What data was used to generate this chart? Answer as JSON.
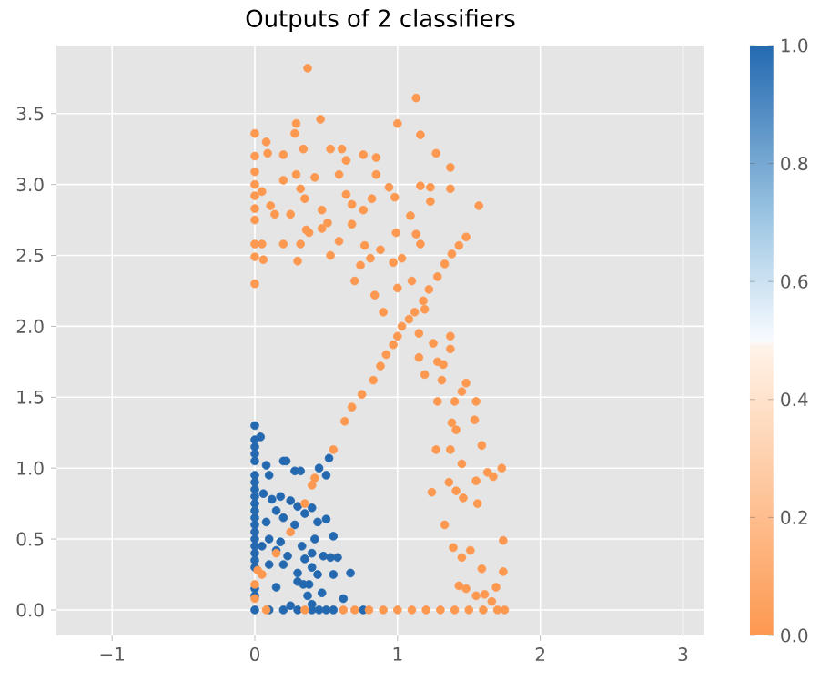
{
  "chart_data": {
    "type": "scatter",
    "title": "Outputs of 2 classifiers",
    "x": [
      0.37,
      1.13,
      1.0,
      0.29,
      0.46,
      0,
      0.28,
      1.16,
      0,
      0.08,
      0.09,
      0.2,
      0.34,
      0.53,
      0.61,
      0.64,
      0.76,
      0.85,
      1.27,
      1.37,
      0,
      0,
      0,
      0,
      0,
      0.05,
      0.11,
      0.14,
      0.2,
      0.25,
      0.29,
      0.32,
      0.35,
      0.36,
      0.42,
      0.47,
      0.51,
      0.59,
      0.64,
      0.68,
      0.76,
      0.82,
      0.85,
      0.94,
      0.98,
      1.09,
      1.16,
      1.23,
      1.23,
      1.37,
      1.57,
      0,
      0,
      0.05,
      0.06,
      0,
      0.2,
      0.3,
      0.32,
      0.38,
      0.47,
      0.53,
      0.59,
      0.68,
      0.77,
      0.81,
      0.88,
      0.97,
      0.99,
      1.03,
      1.13,
      1.16,
      0.74,
      0.7,
      0.84,
      0.9,
      1.0,
      1.1,
      1.19,
      1.15,
      1.37,
      1.37,
      1.25,
      1.15,
      1.19,
      1.28,
      1.32,
      1.31,
      1.48,
      1.45,
      1.4,
      1.28,
      1.55,
      1.54,
      1.38,
      1.41,
      1.59,
      1.27,
      1.37,
      1.45,
      1.63,
      1.73,
      1.67,
      1.55,
      1.36,
      1.24,
      1.41,
      1.46,
      1.56,
      1.33,
      1.74,
      1.39,
      1.45,
      1.51,
      1.59,
      1.74,
      1.43,
      1.48,
      1.55,
      1.61,
      1.69,
      1.66,
      0.05,
      0.15,
      0.25,
      0.35,
      0.4,
      0.42,
      0.55,
      0.63,
      0.68,
      0.75,
      0.83,
      0.88,
      0.92,
      0.97,
      1.0,
      1.03,
      1.08,
      1.12,
      1.18,
      1.22,
      1.28,
      1.33,
      1.38,
      1.43,
      1.48,
      0.08,
      0.2,
      0.35,
      0.55,
      0.62,
      0.7,
      0.8,
      0.9,
      1.0,
      1.1,
      1.2,
      1.3,
      1.4,
      1.5,
      1.6,
      1.7,
      1.75,
      0,
      0,
      0.02,
      0,
      0,
      0,
      0,
      0,
      0,
      0,
      0,
      0,
      0,
      0,
      0,
      0,
      0,
      0,
      0,
      0,
      0,
      0,
      0,
      0,
      0,
      0.04,
      0.08,
      0.1,
      0.2,
      0.22,
      0.28,
      0.32,
      0.52,
      0.45,
      0.5,
      0.06,
      0.12,
      0.18,
      0.15,
      0.25,
      0.3,
      0.35,
      0.4,
      0.08,
      0.2,
      0.28,
      0.44,
      0.5,
      0.1,
      0.18,
      0.25,
      0.33,
      0.42,
      0.55,
      0.05,
      0.15,
      0.23,
      0.35,
      0.4,
      0.48,
      0.53,
      0.58,
      0.1,
      0.2,
      0.3,
      0.4,
      0.44,
      0.55,
      0.67,
      0.15,
      0.3,
      0.34,
      0.38,
      0.47,
      0.62,
      0.37,
      0.25,
      0.4,
      0.1,
      0.2,
      0.3,
      0.4,
      0.45,
      0.5,
      0.55,
      0.76
    ],
    "values": [
      3.82,
      3.61,
      3.43,
      3.43,
      3.46,
      3.36,
      3.36,
      3.35,
      3.2,
      3.3,
      3.22,
      3.21,
      3.25,
      3.25,
      3.25,
      3.17,
      3.21,
      3.19,
      3.22,
      3.12,
      3.09,
      3.0,
      2.92,
      2.83,
      2.75,
      2.95,
      2.85,
      2.79,
      3.03,
      2.79,
      3.07,
      2.97,
      2.9,
      2.68,
      3.05,
      2.82,
      2.73,
      3.07,
      2.93,
      2.86,
      2.82,
      2.9,
      3.07,
      2.98,
      2.91,
      2.78,
      2.99,
      2.98,
      2.88,
      2.97,
      2.85,
      2.58,
      2.49,
      2.58,
      2.47,
      2.3,
      2.58,
      2.46,
      2.58,
      2.66,
      2.69,
      2.5,
      2.6,
      2.72,
      2.57,
      2.48,
      2.54,
      2.45,
      2.66,
      2.48,
      2.65,
      2.58,
      2.43,
      2.32,
      2.22,
      2.1,
      2.27,
      2.32,
      2.12,
      1.95,
      1.93,
      1.84,
      1.88,
      1.78,
      1.66,
      1.75,
      1.73,
      1.62,
      1.6,
      1.54,
      1.47,
      1.47,
      1.47,
      1.34,
      1.32,
      1.27,
      1.16,
      1.13,
      1.13,
      1.03,
      0.97,
      1.0,
      0.94,
      0.91,
      0.9,
      0.83,
      0.84,
      0.79,
      0.75,
      0.6,
      0.49,
      0.44,
      0.37,
      0.42,
      0.29,
      0.27,
      0.17,
      0.15,
      0.1,
      0.11,
      0.16,
      0.06,
      0.25,
      0.4,
      0.55,
      0.75,
      0.88,
      0.93,
      1.13,
      1.33,
      1.43,
      1.52,
      1.62,
      1.72,
      1.8,
      1.87,
      1.93,
      2.0,
      2.05,
      2.1,
      2.18,
      2.26,
      2.35,
      2.44,
      2.51,
      2.57,
      2.63,
      0,
      null,
      0,
      null,
      0,
      0,
      0,
      0,
      0,
      0,
      0,
      0,
      0,
      0,
      0,
      0,
      0,
      0.18,
      0.08,
      0.28,
      1.3,
      1.2,
      1.15,
      1.1,
      1.05,
      0.95,
      0.9,
      0.85,
      0.8,
      0.75,
      0.7,
      0.65,
      0.6,
      0.55,
      0.5,
      0.45,
      0.4,
      0.35,
      0.3,
      0.15,
      0.1,
      0.0,
      1.22,
      1.02,
      0.95,
      1.05,
      1.05,
      0.98,
      0.98,
      1.07,
      1.0,
      0.95,
      0.82,
      0.78,
      0.8,
      0.7,
      0.77,
      0.73,
      0.68,
      0.72,
      0.62,
      0.65,
      0.6,
      0.62,
      0.64,
      0.5,
      0.48,
      null,
      0.45,
      0.5,
      0.52,
      0.45,
      0.42,
      0.38,
      0.36,
      0.4,
      0.38,
      0.37,
      0.37,
      0.32,
      0.32,
      0.26,
      0.3,
      0.25,
      0.25,
      0.26,
      0.16,
      0.2,
      0.18,
      0.18,
      0.12,
      0.08,
      0.1,
      0.03,
      0.04,
      0,
      0,
      0,
      0,
      0,
      0,
      0,
      0
    ],
    "cvalues": [
      0,
      0,
      0,
      0,
      0,
      0,
      0,
      0,
      0,
      0,
      0,
      0,
      0,
      0,
      0,
      0,
      0,
      0,
      0,
      0,
      0,
      0,
      0,
      0,
      0,
      0,
      0,
      0,
      0,
      0,
      0,
      0,
      0,
      0,
      0,
      0,
      0,
      0,
      0,
      0,
      0,
      0,
      0,
      0,
      0,
      0,
      0,
      0,
      0,
      0,
      0,
      0,
      0,
      0,
      0,
      0,
      0,
      0,
      0,
      0,
      0,
      0,
      0,
      0,
      0,
      0,
      0,
      0,
      0,
      0,
      0,
      0,
      0,
      0,
      0,
      0,
      0,
      0,
      0,
      0,
      0,
      0,
      0,
      0,
      0,
      0,
      0,
      0,
      0,
      0,
      0,
      0,
      0,
      0,
      0,
      0,
      0,
      0,
      0,
      0,
      0,
      0,
      0,
      0,
      0,
      0,
      0,
      0,
      0,
      0,
      0,
      0,
      0,
      0,
      0,
      0,
      0,
      0,
      0,
      0,
      0,
      0,
      0,
      0,
      0,
      0,
      0,
      0,
      0,
      0,
      0,
      0,
      0,
      0,
      0,
      0,
      0,
      0,
      0,
      0,
      0,
      0,
      0,
      0,
      0,
      0,
      0,
      0,
      null,
      0,
      null,
      0,
      0,
      0,
      0,
      0,
      0,
      0,
      0,
      0,
      0,
      0,
      0,
      0,
      0,
      0,
      0,
      1,
      1,
      1,
      1,
      1,
      1,
      1,
      1,
      1,
      1,
      1,
      1,
      1,
      1,
      1,
      1,
      1,
      1,
      1,
      1,
      1,
      1,
      1,
      1,
      1,
      1,
      1,
      1,
      1,
      1,
      1,
      1,
      1,
      1,
      1,
      1,
      1,
      1,
      1,
      1,
      1,
      1,
      1,
      1,
      1,
      1,
      1,
      null,
      1,
      1,
      1,
      1,
      1,
      1,
      1,
      1,
      1,
      1,
      1,
      1,
      1,
      1,
      1,
      1,
      1,
      1,
      1,
      1,
      1,
      1,
      1,
      1,
      1,
      1,
      1,
      1,
      1,
      1,
      1,
      1,
      1,
      1,
      1
    ],
    "xlim": [
      -1.39,
      3.15
    ],
    "ylim": [
      -0.18,
      3.98
    ],
    "xticks": [
      {
        "value": -1,
        "label": "−1"
      },
      0,
      1,
      2,
      3
    ],
    "yticks": [
      {
        "value": 0,
        "label": "0.0"
      },
      {
        "value": 0.5,
        "label": "0.5"
      },
      {
        "value": 1,
        "label": "1.0"
      },
      {
        "value": 1.5,
        "label": "1.5"
      },
      {
        "value": 2,
        "label": "2.0"
      },
      {
        "value": 2.5,
        "label": "2.5"
      },
      {
        "value": 3,
        "label": "3.0"
      },
      {
        "value": 3.5,
        "label": "3.5"
      }
    ],
    "clim": [
      0,
      1
    ],
    "cticks": [
      {
        "value": 0,
        "label": "0.0"
      },
      {
        "value": 0.2,
        "label": "0.2"
      },
      {
        "value": 0.4,
        "label": "0.4"
      },
      {
        "value": 0.6,
        "label": "0.6"
      },
      {
        "value": 0.8,
        "label": "0.8"
      },
      {
        "value": 1,
        "label": "1.0"
      }
    ],
    "grid": true,
    "marker": "circle"
  }
}
